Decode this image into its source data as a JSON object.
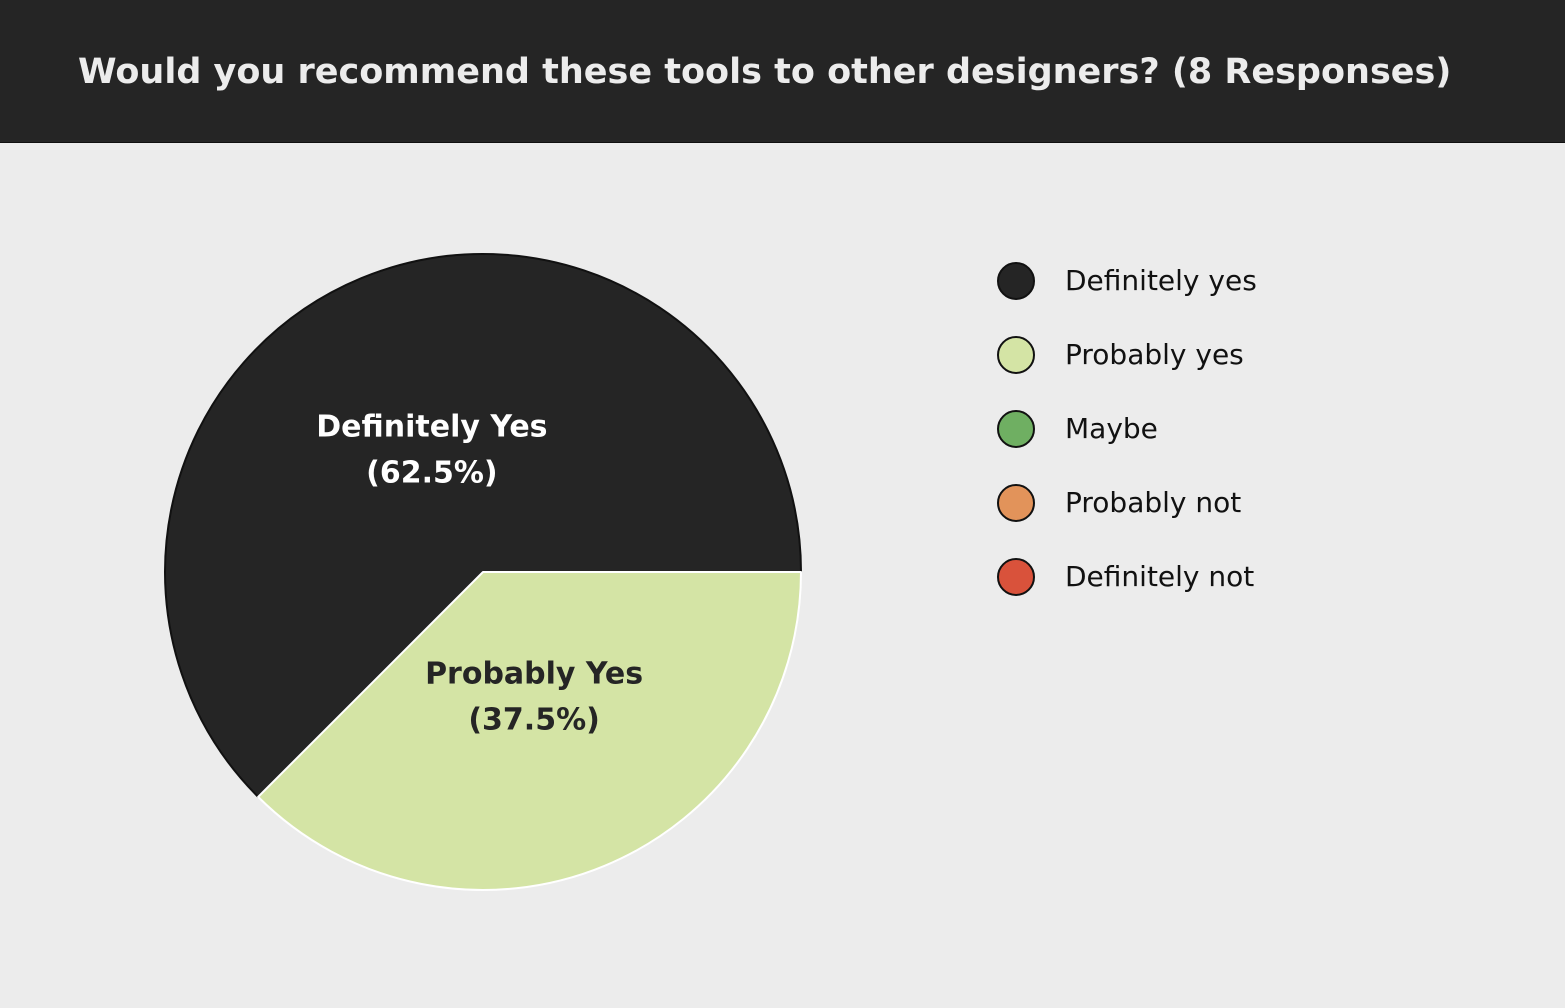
{
  "header": {
    "title": "Would you recommend these tools to other designers? (8 Responses)"
  },
  "chart_data": {
    "type": "pie",
    "title": "Would you recommend these tools to other designers? (8 Responses)",
    "slices": [
      {
        "name": "Definitely Yes",
        "value": 62.5,
        "display": "(62.5%)",
        "color": "#252525",
        "label_color": "#ffffff"
      },
      {
        "name": "Probably Yes",
        "value": 37.5,
        "display": "(37.5%)",
        "color": "#d4e4a5",
        "label_color": "#252525"
      }
    ],
    "legend": {
      "placement": "right",
      "entries": [
        {
          "label": "Definitely yes",
          "color": "#252525"
        },
        {
          "label": "Probably yes",
          "color": "#d4e4a5"
        },
        {
          "label": "Maybe",
          "color": "#6faf62"
        },
        {
          "label": "Probably not",
          "color": "#e2935a"
        },
        {
          "label": "Definitely not",
          "color": "#d9523b"
        }
      ]
    }
  }
}
